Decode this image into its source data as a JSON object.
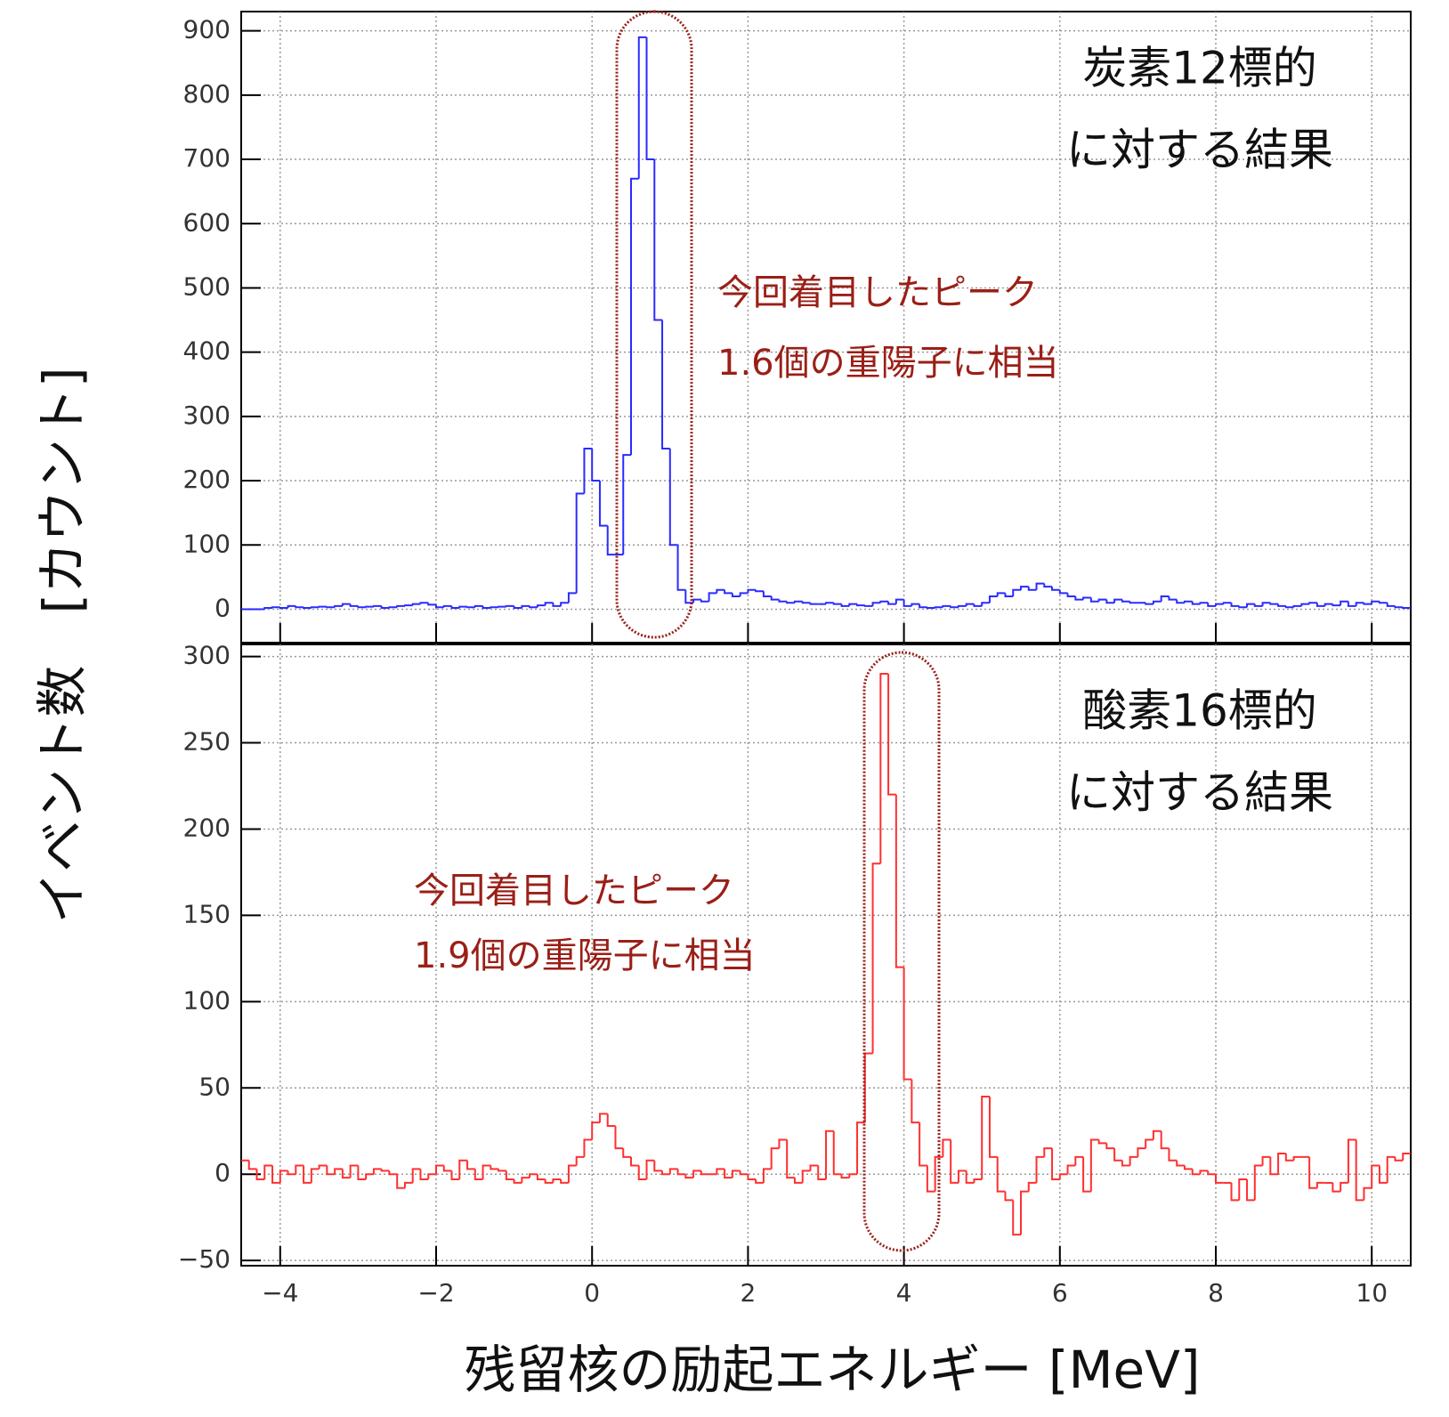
{
  "chart_data": [
    {
      "type": "histogram",
      "ylabel": "イベント数　[カウント]",
      "target_label": [
        "炭素12標的",
        "に対する結果"
      ],
      "annotation": [
        "今回着目したピーク",
        "1.6個の重陽子に相当"
      ],
      "color": "#2b2bff",
      "xlim": [
        -4.5,
        10.5
      ],
      "xticks": [
        -4,
        -2,
        0,
        2,
        4,
        6,
        8,
        10
      ],
      "ylim": [
        -52,
        930
      ],
      "yticks": [
        0,
        100,
        200,
        300,
        400,
        500,
        600,
        700,
        800,
        900
      ],
      "grid": true,
      "bins": [
        -4.5,
        -4.4,
        -4.3,
        -4.2,
        -4.1,
        -4,
        -3.9,
        -3.8,
        -3.7,
        -3.6,
        -3.5,
        -3.4,
        -3.3,
        -3.2,
        -3.1,
        -3,
        -2.9,
        -2.8,
        -2.7,
        -2.6,
        -2.5,
        -2.4,
        -2.3,
        -2.2,
        -2.1,
        -2,
        -1.9,
        -1.8,
        -1.7,
        -1.6,
        -1.5,
        -1.4,
        -1.3,
        -1.2,
        -1.1,
        -1,
        -0.9,
        -0.8,
        -0.7,
        -0.6,
        -0.5,
        -0.4,
        -0.3,
        -0.2,
        -0.1,
        0,
        0.1,
        0.2,
        0.3,
        0.4,
        0.5,
        0.6,
        0.7,
        0.8,
        0.9,
        1,
        1.1,
        1.2,
        1.3,
        1.4,
        1.5,
        1.6,
        1.7,
        1.8,
        1.9,
        2,
        2.1,
        2.2,
        2.3,
        2.4,
        2.5,
        2.6,
        2.7,
        2.8,
        2.9,
        3,
        3.1,
        3.2,
        3.3,
        3.4,
        3.5,
        3.6,
        3.7,
        3.8,
        3.9,
        4,
        4.1,
        4.2,
        4.3,
        4.4,
        4.5,
        4.6,
        4.7,
        4.8,
        4.9,
        5,
        5.1,
        5.2,
        5.3,
        5.4,
        5.5,
        5.6,
        5.7,
        5.8,
        5.9,
        6,
        6.1,
        6.2,
        6.3,
        6.4,
        6.5,
        6.6,
        6.7,
        6.8,
        6.9,
        7,
        7.1,
        7.2,
        7.3,
        7.4,
        7.5,
        7.6,
        7.7,
        7.8,
        7.9,
        8,
        8.1,
        8.2,
        8.3,
        8.4,
        8.5,
        8.6,
        8.7,
        8.8,
        8.9,
        9,
        9.1,
        9.2,
        9.3,
        9.4,
        9.5,
        9.6,
        9.7,
        9.8,
        9.9,
        10,
        10.1,
        10.2,
        10.3,
        10.4,
        10.5
      ],
      "values": [
        0,
        0,
        0,
        2,
        3,
        2,
        5,
        3,
        2,
        3,
        4,
        3,
        5,
        8,
        5,
        3,
        4,
        5,
        2,
        3,
        5,
        6,
        8,
        10,
        7,
        3,
        5,
        2,
        4,
        3,
        5,
        2,
        3,
        4,
        5,
        2,
        5,
        3,
        6,
        10,
        5,
        10,
        25,
        180,
        250,
        200,
        130,
        85,
        85,
        240,
        670,
        890,
        700,
        450,
        250,
        100,
        30,
        10,
        15,
        12,
        25,
        30,
        25,
        20,
        25,
        30,
        28,
        20,
        15,
        12,
        10,
        12,
        10,
        8,
        8,
        10,
        8,
        5,
        8,
        6,
        5,
        10,
        12,
        8,
        15,
        5,
        8,
        3,
        2,
        3,
        5,
        3,
        5,
        8,
        5,
        10,
        20,
        25,
        20,
        30,
        35,
        30,
        40,
        35,
        30,
        25,
        20,
        15,
        18,
        12,
        15,
        10,
        15,
        12,
        10,
        10,
        8,
        12,
        20,
        15,
        10,
        12,
        8,
        10,
        5,
        8,
        10,
        5,
        3,
        8,
        5,
        10,
        8,
        5,
        3,
        5,
        8,
        10,
        5,
        8,
        6,
        12,
        5,
        10,
        8,
        12,
        10,
        5,
        3,
        2
      ]
    },
    {
      "type": "histogram",
      "xlabel": "残留核の励起エネルギー [MeV]",
      "target_label": [
        "酸素16標的",
        "に対する結果"
      ],
      "annotation": [
        "今回着目したピーク",
        "1.9個の重陽子に相当"
      ],
      "color": "#ff3030",
      "xlim": [
        -4.5,
        10.5
      ],
      "xticks": [
        {
          "value": -4,
          "label": "−4"
        },
        {
          "value": -2,
          "label": "−2"
        },
        0,
        2,
        4,
        6,
        8,
        10
      ],
      "ylim": [
        -53,
        307
      ],
      "yticks": [
        {
          "value": -50,
          "label": "−50"
        },
        0,
        50,
        100,
        150,
        200,
        250,
        300
      ],
      "grid": true,
      "bins": [
        -4.5,
        -4.4,
        -4.3,
        -4.2,
        -4.1,
        -4,
        -3.9,
        -3.8,
        -3.7,
        -3.6,
        -3.5,
        -3.4,
        -3.3,
        -3.2,
        -3.1,
        -3,
        -2.9,
        -2.8,
        -2.7,
        -2.6,
        -2.5,
        -2.4,
        -2.3,
        -2.2,
        -2.1,
        -2,
        -1.9,
        -1.8,
        -1.7,
        -1.6,
        -1.5,
        -1.4,
        -1.3,
        -1.2,
        -1.1,
        -1,
        -0.9,
        -0.8,
        -0.7,
        -0.6,
        -0.5,
        -0.4,
        -0.3,
        -0.2,
        -0.1,
        0,
        0.1,
        0.2,
        0.3,
        0.4,
        0.5,
        0.6,
        0.7,
        0.8,
        0.9,
        1,
        1.1,
        1.2,
        1.3,
        1.4,
        1.5,
        1.6,
        1.7,
        1.8,
        1.9,
        2,
        2.1,
        2.2,
        2.3,
        2.4,
        2.5,
        2.6,
        2.7,
        2.8,
        2.9,
        3,
        3.1,
        3.2,
        3.3,
        3.4,
        3.5,
        3.6,
        3.7,
        3.8,
        3.9,
        4,
        4.1,
        4.2,
        4.3,
        4.4,
        4.5,
        4.6,
        4.7,
        4.8,
        4.9,
        5,
        5.1,
        5.2,
        5.3,
        5.4,
        5.5,
        5.6,
        5.7,
        5.8,
        5.9,
        6,
        6.1,
        6.2,
        6.3,
        6.4,
        6.5,
        6.6,
        6.7,
        6.8,
        6.9,
        7,
        7.1,
        7.2,
        7.3,
        7.4,
        7.5,
        7.6,
        7.7,
        7.8,
        7.9,
        8,
        8.1,
        8.2,
        8.3,
        8.4,
        8.5,
        8.6,
        8.7,
        8.8,
        8.9,
        9,
        9.1,
        9.2,
        9.3,
        9.4,
        9.5,
        9.6,
        9.7,
        9.8,
        9.9,
        10,
        10.1,
        10.2,
        10.3,
        10.4,
        10.5
      ],
      "values": [
        8,
        3,
        -3,
        5,
        -5,
        2,
        0,
        5,
        -5,
        3,
        5,
        0,
        3,
        -2,
        5,
        -3,
        0,
        3,
        2,
        0,
        -8,
        -5,
        3,
        -3,
        0,
        5,
        2,
        -3,
        8,
        3,
        -3,
        5,
        3,
        2,
        -3,
        -5,
        -2,
        0,
        -3,
        -5,
        -3,
        -5,
        5,
        10,
        20,
        30,
        35,
        28,
        15,
        10,
        5,
        -3,
        8,
        2,
        0,
        3,
        0,
        -2,
        2,
        0,
        0,
        3,
        -2,
        2,
        0,
        -3,
        -5,
        3,
        15,
        20,
        -2,
        -5,
        2,
        5,
        -3,
        25,
        0,
        -2,
        0,
        30,
        70,
        180,
        290,
        220,
        120,
        55,
        30,
        5,
        -10,
        10,
        20,
        -5,
        2,
        -5,
        -3,
        45,
        10,
        -10,
        -15,
        -35,
        -10,
        -5,
        10,
        15,
        -3,
        0,
        5,
        10,
        -10,
        20,
        18,
        15,
        8,
        5,
        10,
        15,
        20,
        25,
        15,
        8,
        5,
        3,
        0,
        2,
        0,
        -5,
        -5,
        -15,
        -3,
        -15,
        5,
        10,
        0,
        12,
        8,
        10,
        10,
        -8,
        -5,
        -5,
        -10,
        -5,
        20,
        -15,
        -8,
        5,
        -5,
        10,
        8,
        12
      ]
    }
  ]
}
